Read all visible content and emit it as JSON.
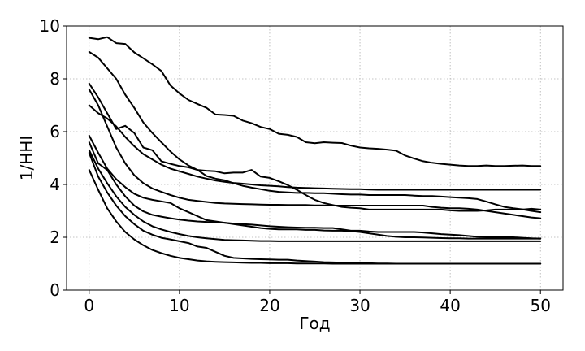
{
  "chart_data": {
    "type": "line",
    "xlabel": "Год",
    "ylabel": "1/HHI",
    "xlim": [
      -2.5,
      52.5
    ],
    "ylim": [
      0,
      10
    ],
    "xticks": [
      0,
      10,
      20,
      30,
      40,
      50
    ],
    "yticks": [
      0,
      2,
      4,
      6,
      8,
      10
    ],
    "grid": true,
    "series": [
      {
        "x": [
          0,
          1,
          2,
          3,
          4,
          5,
          6,
          7,
          8,
          9,
          10,
          11,
          12,
          13,
          14,
          15,
          16,
          17,
          18,
          19,
          20,
          21,
          22,
          23,
          24,
          25,
          26,
          27,
          28,
          29,
          30,
          31,
          32,
          33,
          34,
          35,
          36,
          37,
          38,
          39,
          40,
          41,
          42,
          43,
          44,
          45,
          46,
          47,
          48,
          49,
          50
        ],
        "values": [
          9.55,
          9.5,
          9.58,
          9.35,
          9.32,
          9.0,
          8.78,
          8.55,
          8.3,
          7.75,
          7.45,
          7.2,
          7.05,
          6.9,
          6.65,
          6.63,
          6.6,
          6.42,
          6.32,
          6.18,
          6.1,
          5.92,
          5.88,
          5.8,
          5.6,
          5.56,
          5.6,
          5.58,
          5.57,
          5.47,
          5.4,
          5.37,
          5.35,
          5.32,
          5.28,
          5.1,
          4.98,
          4.88,
          4.82,
          4.78,
          4.75,
          4.72,
          4.7,
          4.7,
          4.72,
          4.7,
          4.7,
          4.71,
          4.72,
          4.7,
          4.7
        ]
      },
      {
        "x": [
          0,
          1,
          2,
          3,
          4,
          5,
          6,
          7,
          8,
          9,
          10,
          11,
          12,
          13,
          14,
          15,
          16,
          17,
          18,
          19,
          20,
          21,
          22,
          23,
          24,
          25,
          26,
          27,
          28,
          29,
          30,
          31,
          32,
          33,
          34,
          35,
          36,
          37,
          38,
          39,
          40,
          41,
          42,
          43,
          44,
          45,
          46,
          47,
          48,
          49,
          50
        ],
        "values": [
          9.02,
          8.8,
          8.4,
          8.0,
          7.4,
          6.9,
          6.35,
          5.95,
          5.6,
          5.25,
          4.95,
          4.72,
          4.55,
          4.32,
          4.22,
          4.16,
          4.05,
          3.95,
          3.88,
          3.82,
          3.76,
          3.72,
          3.7,
          3.68,
          3.68,
          3.67,
          3.67,
          3.65,
          3.63,
          3.62,
          3.62,
          3.6,
          3.6,
          3.6,
          3.6,
          3.6,
          3.58,
          3.56,
          3.56,
          3.54,
          3.52,
          3.5,
          3.48,
          3.45,
          3.35,
          3.25,
          3.15,
          3.1,
          3.06,
          3.0,
          2.95
        ]
      },
      {
        "x": [
          0,
          1,
          2,
          3,
          4,
          5,
          6,
          7,
          8,
          9,
          10,
          11,
          12,
          13,
          14,
          15,
          16,
          17,
          18,
          19,
          20,
          21,
          22,
          23,
          24,
          25,
          26,
          27,
          28,
          29,
          30,
          31,
          32,
          33,
          34,
          35,
          36,
          37,
          38,
          39,
          40,
          41,
          42,
          43,
          44,
          45,
          46,
          47,
          48,
          49,
          50
        ],
        "values": [
          7.82,
          7.3,
          6.7,
          6.1,
          6.22,
          5.95,
          5.4,
          5.3,
          4.88,
          4.78,
          4.7,
          4.65,
          4.55,
          4.52,
          4.5,
          4.42,
          4.45,
          4.45,
          4.55,
          4.3,
          4.25,
          4.12,
          3.98,
          3.8,
          3.6,
          3.42,
          3.3,
          3.22,
          3.15,
          3.12,
          3.1,
          3.05,
          3.05,
          3.05,
          3.05,
          3.05,
          3.05,
          3.05,
          3.05,
          3.05,
          3.02,
          3.0,
          3.0,
          3.0,
          3.02,
          3.05,
          3.05,
          3.05,
          3.05,
          3.08,
          3.05
        ]
      },
      {
        "x": [
          0,
          1,
          2,
          3,
          4,
          5,
          6,
          7,
          8,
          9,
          10,
          11,
          12,
          13,
          14,
          15,
          16,
          17,
          18,
          19,
          20,
          21,
          22,
          23,
          24,
          25,
          26,
          27,
          28,
          29,
          30,
          31,
          32,
          33,
          34,
          35,
          36,
          37,
          38,
          39,
          40,
          41,
          42,
          43,
          44,
          45,
          46,
          47,
          48,
          49,
          50
        ],
        "values": [
          7.0,
          6.7,
          6.5,
          6.2,
          5.8,
          5.45,
          5.15,
          4.95,
          4.75,
          4.6,
          4.5,
          4.4,
          4.3,
          4.22,
          4.15,
          4.1,
          4.06,
          4.03,
          4.0,
          3.97,
          3.95,
          3.93,
          3.9,
          3.88,
          3.87,
          3.86,
          3.85,
          3.84,
          3.83,
          3.82,
          3.82,
          3.81,
          3.8,
          3.8,
          3.8,
          3.8,
          3.8,
          3.8,
          3.8,
          3.8,
          3.8,
          3.8,
          3.8,
          3.8,
          3.8,
          3.8,
          3.8,
          3.8,
          3.8,
          3.8,
          3.8
        ]
      },
      {
        "x": [
          0,
          1,
          2,
          3,
          4,
          5,
          6,
          7,
          8,
          9,
          10,
          11,
          12,
          13,
          14,
          15,
          16,
          17,
          18,
          19,
          20,
          21,
          22,
          23,
          24,
          25,
          26,
          27,
          28,
          29,
          30,
          31,
          32,
          33,
          34,
          35,
          36,
          37,
          38,
          39,
          40,
          41,
          42,
          43,
          44,
          45,
          46,
          47,
          48,
          49,
          50
        ],
        "values": [
          7.6,
          7.0,
          6.2,
          5.4,
          4.8,
          4.35,
          4.05,
          3.85,
          3.72,
          3.6,
          3.5,
          3.42,
          3.38,
          3.34,
          3.3,
          3.28,
          3.27,
          3.26,
          3.25,
          3.24,
          3.23,
          3.23,
          3.22,
          3.22,
          3.22,
          3.21,
          3.21,
          3.2,
          3.2,
          3.2,
          3.2,
          3.2,
          3.2,
          3.2,
          3.2,
          3.2,
          3.2,
          3.2,
          3.15,
          3.12,
          3.1,
          3.1,
          3.08,
          3.05,
          3.0,
          2.95,
          2.9,
          2.85,
          2.8,
          2.75,
          2.72
        ]
      },
      {
        "x": [
          0,
          1,
          2,
          3,
          4,
          5,
          6,
          7,
          8,
          9,
          10,
          11,
          12,
          13,
          14,
          15,
          16,
          17,
          18,
          19,
          20,
          21,
          22,
          23,
          24,
          25,
          26,
          27,
          28,
          29,
          30,
          31,
          32,
          33,
          34,
          35,
          36,
          37,
          38,
          39,
          40,
          41,
          42,
          43,
          44,
          45,
          46,
          47,
          48,
          49,
          50
        ],
        "values": [
          5.85,
          5.2,
          4.6,
          4.2,
          3.9,
          3.65,
          3.5,
          3.42,
          3.36,
          3.3,
          3.1,
          2.95,
          2.8,
          2.65,
          2.6,
          2.55,
          2.52,
          2.5,
          2.48,
          2.45,
          2.42,
          2.4,
          2.38,
          2.37,
          2.36,
          2.36,
          2.35,
          2.35,
          2.3,
          2.25,
          2.25,
          2.22,
          2.2,
          2.2,
          2.2,
          2.2,
          2.2,
          2.18,
          2.15,
          2.12,
          2.1,
          2.08,
          2.05,
          2.02,
          2.0,
          2.0,
          2.0,
          2.0,
          1.98,
          1.96,
          1.95
        ]
      },
      {
        "x": [
          0,
          1,
          2,
          3,
          4,
          5,
          6,
          7,
          8,
          9,
          10,
          11,
          12,
          13,
          14,
          15,
          16,
          17,
          18,
          19,
          20,
          21,
          22,
          23,
          24,
          25,
          26,
          27,
          28,
          29,
          30,
          31,
          32,
          33,
          34,
          35,
          36,
          37,
          38,
          39,
          40,
          41,
          42,
          43,
          44,
          45,
          46,
          47,
          48,
          49,
          50
        ],
        "values": [
          5.6,
          4.8,
          4.55,
          4.0,
          3.55,
          3.2,
          2.98,
          2.85,
          2.78,
          2.72,
          2.67,
          2.63,
          2.6,
          2.58,
          2.56,
          2.55,
          2.5,
          2.45,
          2.4,
          2.35,
          2.32,
          2.3,
          2.3,
          2.3,
          2.28,
          2.28,
          2.26,
          2.25,
          2.25,
          2.23,
          2.2,
          2.15,
          2.1,
          2.05,
          2.02,
          2.0,
          2.0,
          1.99,
          1.98,
          1.97,
          1.96,
          1.96,
          1.95,
          1.95,
          1.95,
          1.95,
          1.95,
          1.95,
          1.95,
          1.95,
          1.95
        ]
      },
      {
        "x": [
          0,
          1,
          2,
          3,
          4,
          5,
          6,
          7,
          8,
          9,
          10,
          11,
          12,
          13,
          14,
          15,
          16,
          17,
          18,
          19,
          20,
          21,
          22,
          23,
          24,
          25,
          26,
          27,
          28,
          29,
          30,
          31,
          32,
          33,
          34,
          35,
          36,
          37,
          38,
          39,
          40,
          41,
          42,
          43,
          44,
          45,
          46,
          47,
          48,
          49,
          50
        ],
        "values": [
          5.3,
          4.6,
          4.05,
          3.55,
          3.15,
          2.85,
          2.6,
          2.42,
          2.3,
          2.2,
          2.12,
          2.05,
          2.0,
          1.96,
          1.93,
          1.9,
          1.89,
          1.88,
          1.87,
          1.86,
          1.86,
          1.85,
          1.85,
          1.85,
          1.85,
          1.85,
          1.85,
          1.85,
          1.85,
          1.85,
          1.85,
          1.85,
          1.85,
          1.85,
          1.85,
          1.85,
          1.85,
          1.85,
          1.85,
          1.85,
          1.85,
          1.85,
          1.85,
          1.85,
          1.85,
          1.85,
          1.85,
          1.85,
          1.85,
          1.85,
          1.85
        ]
      },
      {
        "x": [
          0,
          1,
          2,
          3,
          4,
          5,
          6,
          7,
          8,
          9,
          10,
          11,
          12,
          13,
          14,
          15,
          16,
          17,
          18,
          19,
          20,
          21,
          22,
          23,
          24,
          25,
          26,
          27,
          28,
          29,
          30,
          31,
          32,
          33,
          34,
          35,
          36,
          37,
          38,
          39,
          40,
          41,
          42,
          43,
          44,
          45,
          46,
          47,
          48,
          49,
          50
        ],
        "values": [
          5.2,
          4.3,
          3.7,
          3.2,
          2.8,
          2.5,
          2.25,
          2.1,
          1.98,
          1.92,
          1.85,
          1.78,
          1.65,
          1.6,
          1.45,
          1.3,
          1.22,
          1.2,
          1.18,
          1.17,
          1.16,
          1.15,
          1.15,
          1.12,
          1.1,
          1.08,
          1.06,
          1.05,
          1.04,
          1.03,
          1.02,
          1.02,
          1.01,
          1.01,
          1.0,
          1.0,
          1.0,
          1.0,
          1.0,
          1.0,
          1.0,
          1.0,
          1.0,
          1.0,
          1.0,
          1.0,
          1.0,
          1.0,
          1.0,
          1.0,
          1.0
        ]
      },
      {
        "x": [
          0,
          1,
          2,
          3,
          4,
          5,
          6,
          7,
          8,
          9,
          10,
          11,
          12,
          13,
          14,
          15,
          16,
          17,
          18,
          19,
          20,
          21,
          22,
          23,
          24,
          25,
          26,
          27,
          28,
          29,
          30,
          31,
          32,
          33,
          34,
          35,
          36,
          37,
          38,
          39,
          40,
          41,
          42,
          43,
          44,
          45,
          46,
          47,
          48,
          49,
          50
        ],
        "values": [
          4.55,
          3.8,
          3.1,
          2.6,
          2.2,
          1.92,
          1.7,
          1.52,
          1.4,
          1.3,
          1.22,
          1.17,
          1.12,
          1.09,
          1.07,
          1.06,
          1.05,
          1.04,
          1.03,
          1.03,
          1.02,
          1.02,
          1.02,
          1.01,
          1.01,
          1.01,
          1.01,
          1.0,
          1.0,
          1.0,
          1.0,
          1.0,
          1.0,
          1.0,
          1.0,
          1.0,
          1.0,
          1.0,
          1.0,
          1.0,
          1.0,
          1.0,
          1.0,
          1.0,
          1.0,
          1.0,
          1.0,
          1.0,
          1.0,
          1.0,
          1.0
        ]
      }
    ]
  }
}
